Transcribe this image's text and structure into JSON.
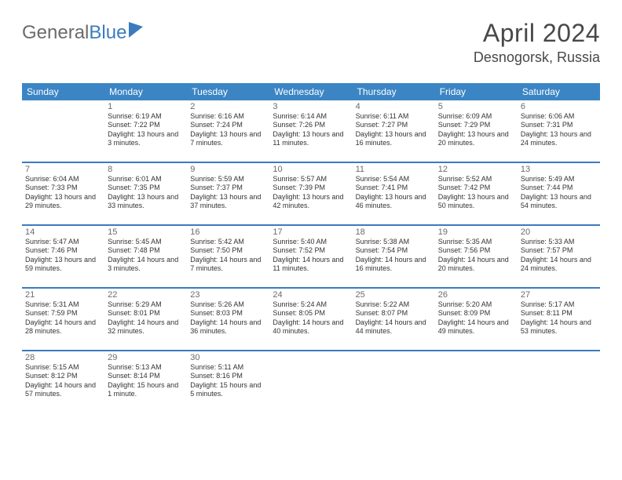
{
  "logo": {
    "part1": "General",
    "part2": "Blue"
  },
  "header": {
    "month": "April 2024",
    "location": "Desnogorsk, Russia"
  },
  "style": {
    "accent": "#3b85c4",
    "rule": "#3b7bbf",
    "headerText": "#ffffff",
    "dayNumColor": "#6b6b6b",
    "detailColor": "#333333"
  },
  "dayLabels": [
    "Sunday",
    "Monday",
    "Tuesday",
    "Wednesday",
    "Thursday",
    "Friday",
    "Saturday"
  ],
  "weeks": [
    [
      {
        "n": "",
        "sr": "",
        "ss": "",
        "dl": ""
      },
      {
        "n": "1",
        "sr": "Sunrise: 6:19 AM",
        "ss": "Sunset: 7:22 PM",
        "dl": "Daylight: 13 hours and 3 minutes."
      },
      {
        "n": "2",
        "sr": "Sunrise: 6:16 AM",
        "ss": "Sunset: 7:24 PM",
        "dl": "Daylight: 13 hours and 7 minutes."
      },
      {
        "n": "3",
        "sr": "Sunrise: 6:14 AM",
        "ss": "Sunset: 7:26 PM",
        "dl": "Daylight: 13 hours and 11 minutes."
      },
      {
        "n": "4",
        "sr": "Sunrise: 6:11 AM",
        "ss": "Sunset: 7:27 PM",
        "dl": "Daylight: 13 hours and 16 minutes."
      },
      {
        "n": "5",
        "sr": "Sunrise: 6:09 AM",
        "ss": "Sunset: 7:29 PM",
        "dl": "Daylight: 13 hours and 20 minutes."
      },
      {
        "n": "6",
        "sr": "Sunrise: 6:06 AM",
        "ss": "Sunset: 7:31 PM",
        "dl": "Daylight: 13 hours and 24 minutes."
      }
    ],
    [
      {
        "n": "7",
        "sr": "Sunrise: 6:04 AM",
        "ss": "Sunset: 7:33 PM",
        "dl": "Daylight: 13 hours and 29 minutes."
      },
      {
        "n": "8",
        "sr": "Sunrise: 6:01 AM",
        "ss": "Sunset: 7:35 PM",
        "dl": "Daylight: 13 hours and 33 minutes."
      },
      {
        "n": "9",
        "sr": "Sunrise: 5:59 AM",
        "ss": "Sunset: 7:37 PM",
        "dl": "Daylight: 13 hours and 37 minutes."
      },
      {
        "n": "10",
        "sr": "Sunrise: 5:57 AM",
        "ss": "Sunset: 7:39 PM",
        "dl": "Daylight: 13 hours and 42 minutes."
      },
      {
        "n": "11",
        "sr": "Sunrise: 5:54 AM",
        "ss": "Sunset: 7:41 PM",
        "dl": "Daylight: 13 hours and 46 minutes."
      },
      {
        "n": "12",
        "sr": "Sunrise: 5:52 AM",
        "ss": "Sunset: 7:42 PM",
        "dl": "Daylight: 13 hours and 50 minutes."
      },
      {
        "n": "13",
        "sr": "Sunrise: 5:49 AM",
        "ss": "Sunset: 7:44 PM",
        "dl": "Daylight: 13 hours and 54 minutes."
      }
    ],
    [
      {
        "n": "14",
        "sr": "Sunrise: 5:47 AM",
        "ss": "Sunset: 7:46 PM",
        "dl": "Daylight: 13 hours and 59 minutes."
      },
      {
        "n": "15",
        "sr": "Sunrise: 5:45 AM",
        "ss": "Sunset: 7:48 PM",
        "dl": "Daylight: 14 hours and 3 minutes."
      },
      {
        "n": "16",
        "sr": "Sunrise: 5:42 AM",
        "ss": "Sunset: 7:50 PM",
        "dl": "Daylight: 14 hours and 7 minutes."
      },
      {
        "n": "17",
        "sr": "Sunrise: 5:40 AM",
        "ss": "Sunset: 7:52 PM",
        "dl": "Daylight: 14 hours and 11 minutes."
      },
      {
        "n": "18",
        "sr": "Sunrise: 5:38 AM",
        "ss": "Sunset: 7:54 PM",
        "dl": "Daylight: 14 hours and 16 minutes."
      },
      {
        "n": "19",
        "sr": "Sunrise: 5:35 AM",
        "ss": "Sunset: 7:56 PM",
        "dl": "Daylight: 14 hours and 20 minutes."
      },
      {
        "n": "20",
        "sr": "Sunrise: 5:33 AM",
        "ss": "Sunset: 7:57 PM",
        "dl": "Daylight: 14 hours and 24 minutes."
      }
    ],
    [
      {
        "n": "21",
        "sr": "Sunrise: 5:31 AM",
        "ss": "Sunset: 7:59 PM",
        "dl": "Daylight: 14 hours and 28 minutes."
      },
      {
        "n": "22",
        "sr": "Sunrise: 5:29 AM",
        "ss": "Sunset: 8:01 PM",
        "dl": "Daylight: 14 hours and 32 minutes."
      },
      {
        "n": "23",
        "sr": "Sunrise: 5:26 AM",
        "ss": "Sunset: 8:03 PM",
        "dl": "Daylight: 14 hours and 36 minutes."
      },
      {
        "n": "24",
        "sr": "Sunrise: 5:24 AM",
        "ss": "Sunset: 8:05 PM",
        "dl": "Daylight: 14 hours and 40 minutes."
      },
      {
        "n": "25",
        "sr": "Sunrise: 5:22 AM",
        "ss": "Sunset: 8:07 PM",
        "dl": "Daylight: 14 hours and 44 minutes."
      },
      {
        "n": "26",
        "sr": "Sunrise: 5:20 AM",
        "ss": "Sunset: 8:09 PM",
        "dl": "Daylight: 14 hours and 49 minutes."
      },
      {
        "n": "27",
        "sr": "Sunrise: 5:17 AM",
        "ss": "Sunset: 8:11 PM",
        "dl": "Daylight: 14 hours and 53 minutes."
      }
    ],
    [
      {
        "n": "28",
        "sr": "Sunrise: 5:15 AM",
        "ss": "Sunset: 8:12 PM",
        "dl": "Daylight: 14 hours and 57 minutes."
      },
      {
        "n": "29",
        "sr": "Sunrise: 5:13 AM",
        "ss": "Sunset: 8:14 PM",
        "dl": "Daylight: 15 hours and 1 minute."
      },
      {
        "n": "30",
        "sr": "Sunrise: 5:11 AM",
        "ss": "Sunset: 8:16 PM",
        "dl": "Daylight: 15 hours and 5 minutes."
      },
      {
        "n": "",
        "sr": "",
        "ss": "",
        "dl": ""
      },
      {
        "n": "",
        "sr": "",
        "ss": "",
        "dl": ""
      },
      {
        "n": "",
        "sr": "",
        "ss": "",
        "dl": ""
      },
      {
        "n": "",
        "sr": "",
        "ss": "",
        "dl": ""
      }
    ]
  ]
}
